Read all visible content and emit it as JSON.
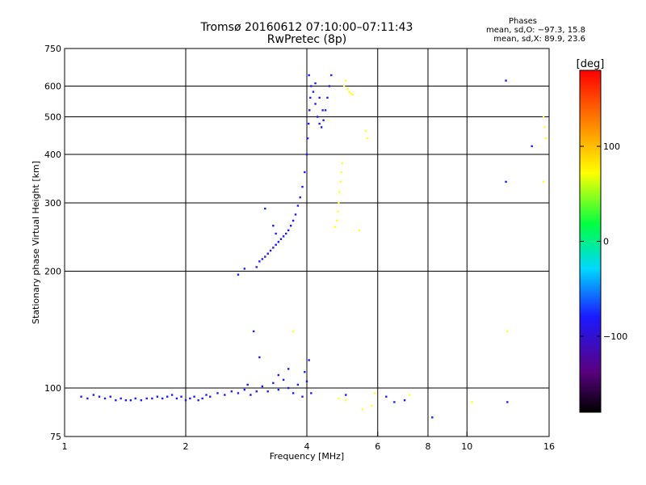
{
  "title": {
    "line1": "Tromsø 20160612 07:10:00–07:11:43",
    "line2": "RwPretec (8p)"
  },
  "phases_box": {
    "heading": "Phases",
    "line_o": "mean, sd,O: −97.3, 15.8",
    "line_x": "mean, sd,X:  89.9, 23.6"
  },
  "chart_data": {
    "type": "scatter",
    "xlabel": "Frequency [MHz]",
    "ylabel": "Stationary phase Virtual Height [km]",
    "xscale": "log",
    "yscale": "log",
    "xlim": [
      1,
      16
    ],
    "ylim": [
      75,
      750
    ],
    "xticks": [
      1,
      2,
      4,
      6,
      8,
      10,
      16
    ],
    "xtick_labels": [
      "1",
      "2",
      "4",
      "6",
      "8",
      "10",
      "16"
    ],
    "yticks": [
      75,
      100,
      200,
      300,
      400,
      500,
      600,
      750
    ],
    "ytick_labels": [
      "75",
      "100",
      "200",
      "300",
      "400",
      "500",
      "600",
      "750"
    ],
    "xgrid": [
      2,
      4,
      6,
      8,
      10
    ],
    "ygrid": [
      100,
      200,
      300,
      400,
      500,
      600
    ],
    "colorbar": {
      "title": "[deg]",
      "range": [
        -180,
        180
      ],
      "ticks": [
        100,
        0,
        -100
      ],
      "tick_labels": [
        "100",
        "0",
        "−100"
      ]
    },
    "series": [
      {
        "points": [
          [
            1.1,
            95
          ],
          [
            1.14,
            94
          ],
          [
            1.18,
            96
          ],
          [
            1.22,
            95
          ],
          [
            1.26,
            94
          ],
          [
            1.3,
            95
          ],
          [
            1.34,
            93
          ],
          [
            1.38,
            94
          ],
          [
            1.42,
            93
          ],
          [
            1.46,
            93
          ],
          [
            1.5,
            94
          ],
          [
            1.55,
            93
          ],
          [
            1.6,
            94
          ],
          [
            1.65,
            94
          ],
          [
            1.7,
            95
          ],
          [
            1.75,
            94
          ],
          [
            1.8,
            95
          ],
          [
            1.85,
            96
          ],
          [
            1.9,
            94
          ],
          [
            1.95,
            95
          ],
          [
            2.0,
            93
          ],
          [
            2.05,
            94
          ],
          [
            2.1,
            95
          ],
          [
            2.15,
            93
          ],
          [
            2.2,
            94
          ],
          [
            2.25,
            96
          ],
          [
            2.3,
            95
          ],
          [
            2.4,
            97
          ],
          [
            2.5,
            96
          ],
          [
            2.6,
            98
          ],
          [
            2.7,
            97
          ],
          [
            2.8,
            99
          ],
          [
            2.85,
            102
          ],
          [
            2.9,
            96
          ],
          [
            3.0,
            98
          ],
          [
            3.1,
            101
          ],
          [
            3.2,
            98
          ],
          [
            3.3,
            103
          ],
          [
            3.4,
            99
          ],
          [
            3.5,
            105
          ],
          [
            3.6,
            100
          ],
          [
            3.7,
            97
          ],
          [
            3.8,
            102
          ],
          [
            3.9,
            95
          ],
          [
            4.0,
            104
          ],
          [
            4.1,
            97
          ],
          [
            2.95,
            140
          ],
          [
            3.05,
            120
          ],
          [
            3.4,
            108
          ],
          [
            3.6,
            112
          ],
          [
            3.95,
            110
          ],
          [
            4.05,
            118
          ],
          [
            3.0,
            205
          ],
          [
            3.05,
            212
          ],
          [
            3.1,
            215
          ],
          [
            3.15,
            218
          ],
          [
            3.2,
            222
          ],
          [
            3.25,
            226
          ],
          [
            3.3,
            230
          ],
          [
            3.35,
            234
          ],
          [
            3.4,
            238
          ],
          [
            3.45,
            242
          ],
          [
            3.5,
            246
          ],
          [
            3.55,
            250
          ],
          [
            3.6,
            255
          ],
          [
            3.65,
            262
          ],
          [
            3.7,
            270
          ],
          [
            3.75,
            280
          ],
          [
            3.8,
            295
          ],
          [
            3.85,
            310
          ],
          [
            3.9,
            330
          ],
          [
            3.95,
            360
          ],
          [
            4.0,
            400
          ],
          [
            4.02,
            440
          ],
          [
            4.04,
            480
          ],
          [
            4.06,
            520
          ],
          [
            4.08,
            560
          ],
          [
            4.1,
            600
          ],
          [
            4.05,
            640
          ],
          [
            4.15,
            580
          ],
          [
            4.2,
            540
          ],
          [
            4.25,
            500
          ],
          [
            4.3,
            480
          ],
          [
            4.35,
            470
          ],
          [
            4.4,
            490
          ],
          [
            4.45,
            520
          ],
          [
            4.5,
            560
          ],
          [
            4.55,
            600
          ],
          [
            4.6,
            640
          ],
          [
            4.2,
            610
          ],
          [
            4.3,
            560
          ],
          [
            4.38,
            520
          ],
          [
            3.15,
            290
          ],
          [
            3.3,
            262
          ],
          [
            3.35,
            250
          ],
          [
            2.7,
            196
          ],
          [
            2.8,
            203
          ],
          [
            5.0,
            96
          ],
          [
            6.3,
            95
          ],
          [
            6.6,
            92
          ],
          [
            7.0,
            93
          ],
          [
            8.2,
            84
          ],
          [
            12.5,
            620
          ],
          [
            12.5,
            340
          ],
          [
            14.5,
            420
          ],
          [
            12.6,
            92
          ]
        ]
      },
      {
        "points": [
          [
            4.7,
            260
          ],
          [
            4.75,
            270
          ],
          [
            4.78,
            285
          ],
          [
            4.8,
            300
          ],
          [
            4.82,
            320
          ],
          [
            4.85,
            340
          ],
          [
            4.87,
            360
          ],
          [
            4.9,
            380
          ],
          [
            4.95,
            600
          ],
          [
            5.0,
            620
          ],
          [
            5.05,
            590
          ],
          [
            5.1,
            580
          ],
          [
            5.15,
            575
          ],
          [
            5.2,
            570
          ],
          [
            5.4,
            255
          ],
          [
            5.6,
            460
          ],
          [
            5.65,
            440
          ],
          [
            4.8,
            94
          ],
          [
            5.0,
            93
          ],
          [
            5.5,
            88
          ],
          [
            5.8,
            90
          ],
          [
            5.9,
            97
          ],
          [
            7.2,
            96
          ],
          [
            10.3,
            92
          ],
          [
            12.6,
            140
          ],
          [
            15.5,
            500
          ],
          [
            15.6,
            470
          ],
          [
            15.7,
            440
          ],
          [
            15.5,
            340
          ],
          [
            3.7,
            140
          ]
        ]
      }
    ]
  }
}
